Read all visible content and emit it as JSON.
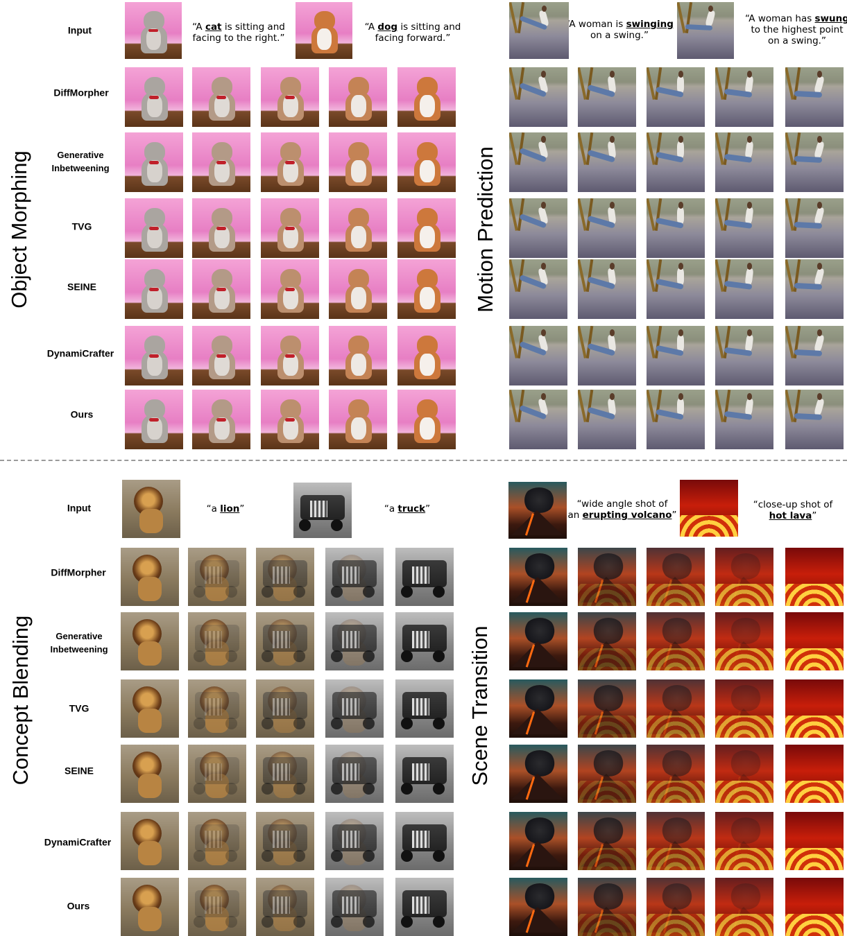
{
  "sections": {
    "object_morphing": {
      "title": "Object Morphing",
      "rows": [
        "Input",
        "DiffMorpher",
        "Generative\nInbetweening",
        "TVG",
        "SEINE",
        "DynamiCrafter",
        "Ours"
      ],
      "captions": [
        {
          "pre": "“A ",
          "key": "cat",
          "post": " is sitting and",
          "line2": "facing to the right.”"
        },
        {
          "pre": "“A ",
          "key": "dog",
          "post": " is sitting and",
          "line2": "facing forward.”"
        }
      ]
    },
    "motion_prediction": {
      "title": "Motion Prediction",
      "captions": [
        {
          "pre": "“A woman is ",
          "key": "swinging",
          "post": "",
          "line2": "on a swing.”"
        },
        {
          "pre": "“A woman has ",
          "key": "swung",
          "post": "",
          "line2": "to the highest point",
          "line3": "on a swing.”"
        }
      ]
    },
    "concept_blending": {
      "title": "Concept Blending",
      "rows": [
        "Input",
        "DiffMorpher",
        "Generative\nInbetweening",
        "TVG",
        "SEINE",
        "DynamiCrafter",
        "Ours"
      ],
      "captions": [
        {
          "pre": "“a ",
          "key": "lion",
          "post": "”"
        },
        {
          "pre": "“a ",
          "key": "truck",
          "post": "”"
        }
      ]
    },
    "scene_transition": {
      "title": "Scene Transition",
      "captions": [
        {
          "line1": "“wide angle shot of",
          "pre": "an ",
          "key": "erupting volcano",
          "post": "”"
        },
        {
          "line1": "“close-up shot of",
          "pre": "",
          "key": "hot lava",
          "post": "”"
        }
      ]
    }
  },
  "image_subjects": {
    "cat": "cat-image",
    "dog": "dog-image",
    "swing": "swing-image",
    "lion": "lion-image",
    "truck": "truck-image",
    "volcano": "volcano-image",
    "lava": "lava-image"
  },
  "colors": {
    "divider": "#9a9a9a",
    "pink_bg": "#e77fc4",
    "lava": "#e8400f"
  }
}
